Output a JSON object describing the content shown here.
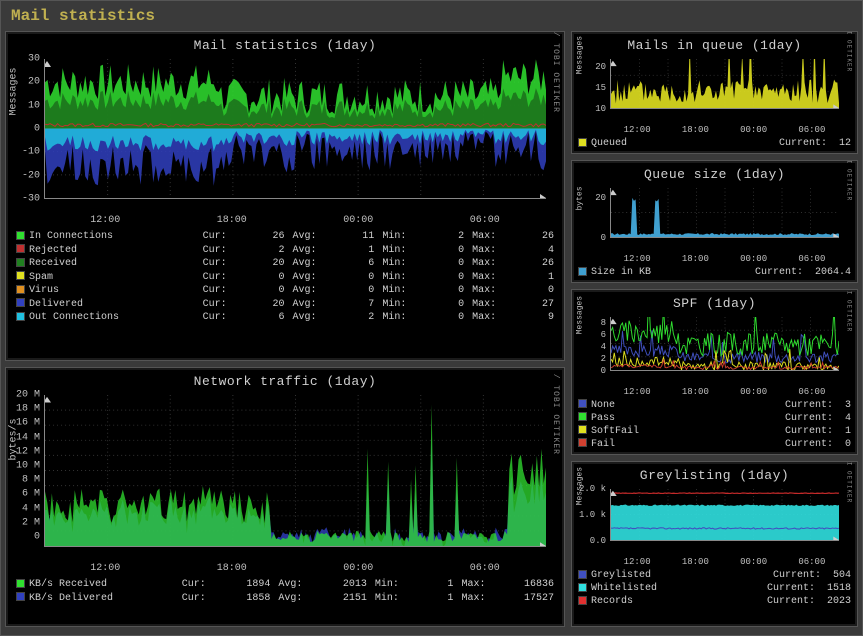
{
  "page_title": "Mail statistics",
  "credit_text": "RRDTOOL / TOBI OETIKER",
  "time_ticks": [
    "12:00",
    "18:00",
    "00:00",
    "06:00"
  ],
  "mail_stats": {
    "title": "Mail statistics  (1day)",
    "ylabel": "Messages",
    "ylim": [
      -30,
      30
    ],
    "yticks": [
      -30,
      -20,
      -10,
      0,
      10,
      20,
      30
    ],
    "series": [
      {
        "name": "In Connections",
        "color": "#30e030",
        "cur": 26,
        "avg": 11,
        "min": 2,
        "max": 26
      },
      {
        "name": "Rejected",
        "color": "#c03030",
        "cur": 2,
        "avg": 1,
        "min": 0,
        "max": 4
      },
      {
        "name": "Received",
        "color": "#208020",
        "cur": 20,
        "avg": 6,
        "min": 0,
        "max": 26
      },
      {
        "name": "Spam",
        "color": "#e0e020",
        "cur": 0,
        "avg": 0,
        "min": 0,
        "max": 1
      },
      {
        "name": "Virus",
        "color": "#e09020",
        "cur": 0,
        "avg": 0,
        "min": 0,
        "max": 0
      },
      {
        "name": "Delivered",
        "color": "#3040c0",
        "cur": 20,
        "avg": 7,
        "min": 0,
        "max": 27
      },
      {
        "name": "Out Connections",
        "color": "#20c0e0",
        "cur": 6,
        "avg": 2,
        "min": 0,
        "max": 9
      }
    ],
    "label_cur": "Cur:",
    "label_avg": "Avg:",
    "label_min": "Min:",
    "label_max": "Max:"
  },
  "net_traffic": {
    "title": "Network traffic  (1day)",
    "ylabel": "bytes/s",
    "yticks": [
      "0",
      "2 M",
      "4 M",
      "6 M",
      "8 M",
      "10 M",
      "12 M",
      "14 M",
      "16 M",
      "18 M",
      "20 M"
    ],
    "ylim": [
      0,
      20
    ],
    "series": [
      {
        "name": "KB/s Received",
        "color": "#30e030",
        "cur": 1894,
        "avg": 2013,
        "min": 1,
        "max": 16836
      },
      {
        "name": "KB/s Delivered",
        "color": "#3040c0",
        "cur": 1858,
        "avg": 2151,
        "min": 1,
        "max": 17527
      }
    ]
  },
  "queue": {
    "title": "Mails in queue  (1day)",
    "ylabel": "Messages",
    "yticks": [
      10,
      15,
      20
    ],
    "ylim": [
      10,
      22
    ],
    "legend": {
      "name": "Queued",
      "color": "#e0e020",
      "label": "Current:",
      "value": 12
    }
  },
  "queue_size": {
    "title": "Queue size  (1day)",
    "ylabel": "bytes",
    "yticks": [
      "0",
      "20 M"
    ],
    "ylim": [
      0,
      25
    ],
    "legend": {
      "name": "Size in KB",
      "color": "#40a0d0",
      "label": "Current:",
      "value": "2064.4"
    }
  },
  "spf": {
    "title": "SPF  (1day)",
    "ylabel": "Messages",
    "yticks": [
      0,
      2,
      4,
      6,
      8
    ],
    "ylim": [
      0,
      9
    ],
    "series": [
      {
        "name": "None",
        "color": "#4050c0",
        "label": "Current:",
        "value": 3
      },
      {
        "name": "Pass",
        "color": "#30e030",
        "label": "Current:",
        "value": 4
      },
      {
        "name": "SoftFail",
        "color": "#e0e020",
        "label": "Current:",
        "value": 1
      },
      {
        "name": "Fail",
        "color": "#d04030",
        "label": "Current:",
        "value": 0
      }
    ]
  },
  "greylist": {
    "title": "Greylisting  (1day)",
    "ylabel": "Messages",
    "yticks": [
      "0.0",
      "1.0 k",
      "2.0 k"
    ],
    "ylim": [
      0,
      2200
    ],
    "series": [
      {
        "name": "Greylisted",
        "color": "#4050c0",
        "label": "Current:",
        "value": 504
      },
      {
        "name": "Whitelisted",
        "color": "#30e0e0",
        "label": "Current:",
        "value": 1518
      },
      {
        "name": "Records",
        "color": "#e03030",
        "label": "Current:",
        "value": 2023
      }
    ]
  }
}
